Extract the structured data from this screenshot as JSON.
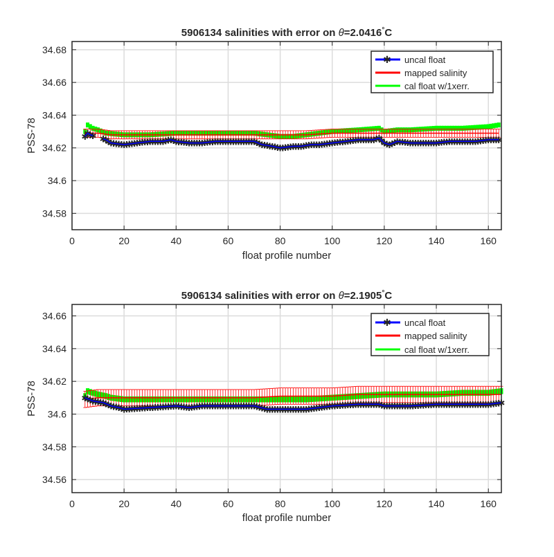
{
  "chart_data": [
    {
      "type": "line",
      "title": "5906134 salinities with error on θ=2.0416°C",
      "title_parts": {
        "prefix": "5906134 salinities with error on ",
        "theta": "θ",
        "value": "=2.0416",
        "degree": "°",
        "unit": "C"
      },
      "xlabel": "float profile number",
      "ylabel": "PSS-78",
      "xlim": [
        0,
        165
      ],
      "ylim": [
        34.57,
        34.685
      ],
      "xticks": [
        0,
        20,
        40,
        60,
        80,
        100,
        120,
        140,
        160
      ],
      "xtick_labels": [
        "0",
        "20",
        "40",
        "60",
        "80",
        "100",
        "120",
        "140",
        "160"
      ],
      "yticks": [
        34.58,
        34.6,
        34.62,
        34.64,
        34.66,
        34.68
      ],
      "ytick_labels": [
        "34.58",
        "34.6",
        "34.62",
        "34.64",
        "34.66",
        "34.68"
      ],
      "grid": true,
      "legend_position": "top-right",
      "x_range": [
        5,
        164
      ],
      "series": [
        {
          "name": "uncal float",
          "color": "#0000ff",
          "marker": "star",
          "points": [
            [
              5,
              34.627
            ],
            [
              6,
              34.629
            ],
            [
              7,
              34.628
            ],
            [
              13,
              34.625
            ],
            [
              15,
              34.623
            ],
            [
              20,
              34.622
            ],
            [
              25,
              34.623
            ],
            [
              30,
              34.624
            ],
            [
              35,
              34.624
            ],
            [
              38,
              34.625
            ],
            [
              40,
              34.624
            ],
            [
              45,
              34.623
            ],
            [
              50,
              34.623
            ],
            [
              55,
              34.624
            ],
            [
              60,
              34.624
            ],
            [
              65,
              34.624
            ],
            [
              70,
              34.624
            ],
            [
              73,
              34.622
            ],
            [
              77,
              34.621
            ],
            [
              80,
              34.62
            ],
            [
              85,
              34.621
            ],
            [
              88,
              34.621
            ],
            [
              92,
              34.622
            ],
            [
              95,
              34.622
            ],
            [
              100,
              34.623
            ],
            [
              105,
              34.624
            ],
            [
              110,
              34.625
            ],
            [
              113,
              34.625
            ],
            [
              116,
              34.625
            ],
            [
              118,
              34.626
            ],
            [
              120,
              34.623
            ],
            [
              122,
              34.622
            ],
            [
              125,
              34.624
            ],
            [
              130,
              34.623
            ],
            [
              135,
              34.623
            ],
            [
              140,
              34.623
            ],
            [
              145,
              34.624
            ],
            [
              150,
              34.624
            ],
            [
              155,
              34.624
            ],
            [
              160,
              34.625
            ],
            [
              164,
              34.625
            ]
          ]
        },
        {
          "name": "mapped salinity",
          "color": "#ff0000",
          "points": [
            [
              5,
              34.629
            ],
            [
              10,
              34.629
            ],
            [
              15,
              34.628
            ],
            [
              20,
              34.628
            ],
            [
              30,
              34.628
            ],
            [
              40,
              34.628
            ],
            [
              50,
              34.628
            ],
            [
              60,
              34.628
            ],
            [
              70,
              34.628
            ],
            [
              80,
              34.628
            ],
            [
              90,
              34.628
            ],
            [
              100,
              34.629
            ],
            [
              110,
              34.629
            ],
            [
              120,
              34.629
            ],
            [
              130,
              34.629
            ],
            [
              140,
              34.629
            ],
            [
              150,
              34.629
            ],
            [
              160,
              34.629
            ],
            [
              164,
              34.629
            ]
          ],
          "error": 0.0025
        },
        {
          "name": "cal float w/1xerr.",
          "color": "#00ff00",
          "points": [
            [
              5,
              34.63
            ],
            [
              6,
              34.634
            ],
            [
              8,
              34.632
            ],
            [
              10,
              34.631
            ],
            [
              13,
              34.629
            ],
            [
              20,
              34.628
            ],
            [
              30,
              34.628
            ],
            [
              40,
              34.629
            ],
            [
              50,
              34.629
            ],
            [
              60,
              34.629
            ],
            [
              70,
              34.629
            ],
            [
              75,
              34.628
            ],
            [
              80,
              34.627
            ],
            [
              85,
              34.627
            ],
            [
              90,
              34.628
            ],
            [
              95,
              34.629
            ],
            [
              100,
              34.63
            ],
            [
              110,
              34.631
            ],
            [
              118,
              34.632
            ],
            [
              120,
              34.63
            ],
            [
              125,
              34.631
            ],
            [
              130,
              34.631
            ],
            [
              140,
              34.632
            ],
            [
              150,
              34.632
            ],
            [
              160,
              34.633
            ],
            [
              164,
              34.634
            ]
          ],
          "error": 0.0015
        }
      ]
    },
    {
      "type": "line",
      "title": "5906134 salinities with error on θ=2.1905°C",
      "title_parts": {
        "prefix": "5906134 salinities with error on ",
        "theta": "θ",
        "value": "=2.1905",
        "degree": "°",
        "unit": "C"
      },
      "xlabel": "float profile number",
      "ylabel": "PSS-78",
      "xlim": [
        0,
        165
      ],
      "ylim": [
        34.552,
        34.667
      ],
      "xticks": [
        0,
        20,
        40,
        60,
        80,
        100,
        120,
        140,
        160
      ],
      "xtick_labels": [
        "0",
        "20",
        "40",
        "60",
        "80",
        "100",
        "120",
        "140",
        "160"
      ],
      "yticks": [
        34.56,
        34.58,
        34.6,
        34.62,
        34.64,
        34.66
      ],
      "ytick_labels": [
        "34.56",
        "34.58",
        "34.6",
        "34.62",
        "34.64",
        "34.66"
      ],
      "grid": true,
      "legend_position": "top-right",
      "x_range": [
        5,
        165
      ],
      "series": [
        {
          "name": "uncal float",
          "color": "#0000ff",
          "marker": "star",
          "points": [
            [
              5,
              34.61
            ],
            [
              8,
              34.608
            ],
            [
              12,
              34.607
            ],
            [
              15,
              34.605
            ],
            [
              18,
              34.604
            ],
            [
              20,
              34.603
            ],
            [
              30,
              34.604
            ],
            [
              40,
              34.605
            ],
            [
              45,
              34.604
            ],
            [
              50,
              34.605
            ],
            [
              60,
              34.605
            ],
            [
              70,
              34.605
            ],
            [
              75,
              34.603
            ],
            [
              80,
              34.603
            ],
            [
              90,
              34.603
            ],
            [
              95,
              34.604
            ],
            [
              100,
              34.605
            ],
            [
              110,
              34.606
            ],
            [
              118,
              34.606
            ],
            [
              120,
              34.605
            ],
            [
              125,
              34.605
            ],
            [
              130,
              34.605
            ],
            [
              140,
              34.606
            ],
            [
              150,
              34.606
            ],
            [
              160,
              34.606
            ],
            [
              165,
              34.607
            ]
          ]
        },
        {
          "name": "mapped salinity",
          "color": "#ff0000",
          "points": [
            [
              5,
              34.609
            ],
            [
              10,
              34.61
            ],
            [
              15,
              34.61
            ],
            [
              20,
              34.61
            ],
            [
              30,
              34.61
            ],
            [
              40,
              34.61
            ],
            [
              50,
              34.61
            ],
            [
              60,
              34.61
            ],
            [
              70,
              34.61
            ],
            [
              80,
              34.611
            ],
            [
              90,
              34.611
            ],
            [
              100,
              34.611
            ],
            [
              110,
              34.612
            ],
            [
              120,
              34.612
            ],
            [
              130,
              34.612
            ],
            [
              140,
              34.612
            ],
            [
              150,
              34.612
            ],
            [
              160,
              34.612
            ],
            [
              165,
              34.612
            ]
          ],
          "error": 0.005
        },
        {
          "name": "cal float w/1xerr.",
          "color": "#00ff00",
          "points": [
            [
              5,
              34.611
            ],
            [
              6,
              34.614
            ],
            [
              8,
              34.613
            ],
            [
              10,
              34.612
            ],
            [
              13,
              34.611
            ],
            [
              15,
              34.61
            ],
            [
              20,
              34.609
            ],
            [
              30,
              34.609
            ],
            [
              40,
              34.609
            ],
            [
              50,
              34.609
            ],
            [
              60,
              34.609
            ],
            [
              70,
              34.609
            ],
            [
              80,
              34.609
            ],
            [
              90,
              34.609
            ],
            [
              100,
              34.61
            ],
            [
              110,
              34.611
            ],
            [
              120,
              34.612
            ],
            [
              130,
              34.612
            ],
            [
              140,
              34.612
            ],
            [
              150,
              34.613
            ],
            [
              160,
              34.613
            ],
            [
              165,
              34.614
            ]
          ],
          "error": 0.0018
        }
      ]
    }
  ]
}
